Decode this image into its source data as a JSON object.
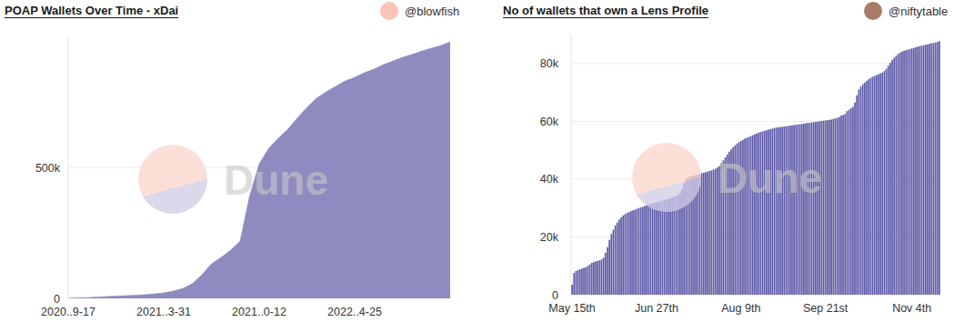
{
  "chart_data": [
    {
      "type": "area",
      "title": "POAP Wallets Over Time - xDai",
      "author": "@blowfish",
      "watermark": "Dune",
      "categories": [
        "2020..9-17",
        null,
        null,
        null,
        null,
        null,
        null,
        null,
        null,
        null,
        "2021..3-31",
        null,
        null,
        null,
        null,
        null,
        null,
        null,
        null,
        null,
        "2021..0-12",
        null,
        null,
        null,
        null,
        null,
        null,
        null,
        null,
        null,
        "2022..4-25",
        null,
        null,
        null,
        null,
        null,
        null,
        null,
        null,
        null,
        null
      ],
      "values": [
        0,
        2000,
        3000,
        5000,
        7000,
        9000,
        10000,
        12000,
        14000,
        17000,
        21000,
        28000,
        38000,
        56000,
        90000,
        132000,
        156000,
        184000,
        219000,
        392000,
        514000,
        573000,
        611000,
        646000,
        688000,
        729000,
        764000,
        788000,
        809000,
        830000,
        844000,
        861000,
        875000,
        892000,
        906000,
        920000,
        931000,
        944000,
        955000,
        965000,
        979000
      ],
      "color": "#8f8bc0",
      "ylim": [
        0,
        1000000
      ],
      "yticks": [
        0,
        {
          "value": 500000,
          "label": "500k"
        }
      ],
      "grid": true
    },
    {
      "type": "bar",
      "title": "No of wallets that own a Lens Profile",
      "author": "@niftytable",
      "watermark": "Dune",
      "categories": [
        "May 15th",
        null,
        null,
        null,
        null,
        null,
        null,
        null,
        null,
        null,
        null,
        null,
        null,
        null,
        null,
        null,
        null,
        null,
        null,
        null,
        null,
        null,
        null,
        null,
        null,
        null,
        null,
        null,
        null,
        null,
        null,
        null,
        null,
        null,
        null,
        null,
        null,
        null,
        null,
        null,
        null,
        null,
        null,
        "Jun 27th",
        null,
        null,
        null,
        null,
        null,
        null,
        null,
        null,
        null,
        null,
        null,
        null,
        null,
        null,
        null,
        null,
        null,
        null,
        null,
        null,
        null,
        null,
        null,
        null,
        null,
        null,
        null,
        null,
        null,
        null,
        null,
        null,
        null,
        null,
        null,
        null,
        null,
        null,
        null,
        null,
        null,
        null,
        "Aug 9th",
        null,
        null,
        null,
        null,
        null,
        null,
        null,
        null,
        null,
        null,
        null,
        null,
        null,
        null,
        null,
        null,
        null,
        null,
        null,
        null,
        null,
        null,
        null,
        null,
        null,
        null,
        null,
        null,
        null,
        null,
        null,
        null,
        null,
        null,
        null,
        null,
        null,
        null,
        null,
        null,
        null,
        null,
        "Sep 21st",
        null,
        null,
        null,
        null,
        null,
        null,
        null,
        null,
        null,
        null,
        null,
        null,
        null,
        null,
        null,
        null,
        null,
        null,
        null,
        null,
        null,
        null,
        null,
        null,
        null,
        null,
        null,
        null,
        null,
        null,
        null,
        null,
        null,
        null,
        null,
        null,
        null,
        null,
        null,
        null,
        null,
        null,
        null,
        "Nov 4th",
        null,
        null,
        null,
        null,
        null,
        null,
        null,
        null,
        null,
        null,
        null,
        null,
        null,
        null
      ],
      "values": [
        3500,
        7500,
        8200,
        8500,
        8800,
        9000,
        9300,
        9500,
        10000,
        10500,
        11000,
        11300,
        11500,
        11700,
        11900,
        12200,
        12800,
        14500,
        16500,
        19000,
        21000,
        22500,
        24000,
        25000,
        26000,
        26800,
        27400,
        27900,
        28300,
        28600,
        28900,
        29200,
        29400,
        29700,
        30000,
        30200,
        30400,
        30700,
        31000,
        31200,
        31400,
        31600,
        31800,
        32000,
        32200,
        32400,
        32600,
        32800,
        33000,
        33200,
        33400,
        33600,
        33900,
        34200,
        34600,
        35200,
        36500,
        38500,
        40000,
        40500,
        40800,
        41000,
        41200,
        41400,
        41600,
        41800,
        42000,
        42200,
        42400,
        42600,
        42800,
        43000,
        43300,
        43600,
        44000,
        44500,
        45500,
        46500,
        47500,
        48500,
        49500,
        50300,
        51000,
        51700,
        52300,
        52800,
        53200,
        53600,
        54000,
        54300,
        54600,
        54900,
        55200,
        55500,
        55800,
        56100,
        56300,
        56500,
        56700,
        56900,
        57100,
        57300,
        57500,
        57700,
        57800,
        57900,
        58000,
        58100,
        58200,
        58300,
        58400,
        58500,
        58600,
        58700,
        58800,
        58900,
        59000,
        59100,
        59200,
        59300,
        59400,
        59500,
        59600,
        59700,
        59800,
        59900,
        60000,
        60100,
        60200,
        60300,
        60400,
        60500,
        60600,
        60800,
        61000,
        61200,
        61500,
        62000,
        62200,
        62500,
        63500,
        64000,
        64500,
        65000,
        66500,
        69000,
        71000,
        72000,
        72800,
        73400,
        74000,
        74500,
        75000,
        75400,
        75700,
        76000,
        76300,
        76600,
        76900,
        77400,
        78200,
        79200,
        80200,
        81200,
        82000,
        82700,
        83300,
        83800,
        84100,
        84400,
        84600,
        84800,
        85000,
        85200,
        85400,
        85600,
        85800,
        86000,
        86200,
        86300,
        86500,
        86600,
        86800,
        87000,
        87100,
        87300,
        87500,
        87700
      ],
      "color": "#5b58a6",
      "ylim": [
        0,
        90000
      ],
      "yticks": [
        0,
        {
          "value": 20000,
          "label": "20k"
        },
        {
          "value": 40000,
          "label": "40k"
        },
        {
          "value": 60000,
          "label": "60k"
        },
        {
          "value": 80000,
          "label": "80k"
        }
      ],
      "grid": true
    }
  ]
}
